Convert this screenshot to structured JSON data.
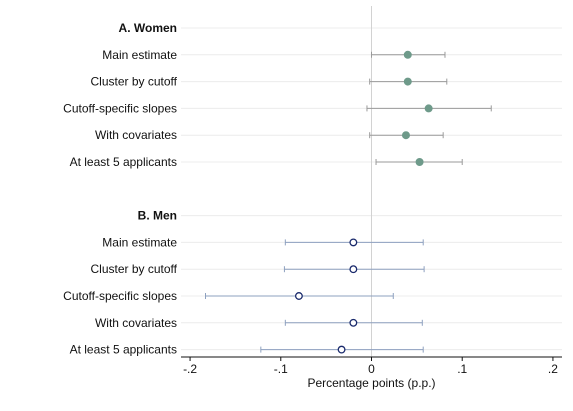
{
  "chart_data": {
    "type": "scatter",
    "subtype": "coefficient-plot-with-confidence-intervals",
    "xlabel": "Percentage points (p.p.)",
    "xlim": [
      -0.21,
      0.21
    ],
    "x_ticks": [
      -0.2,
      -0.1,
      0,
      0.1,
      0.2
    ],
    "x_tick_labels": [
      "-.2",
      "-.1",
      "0",
      ".1",
      ".2"
    ],
    "zero_reference_line": true,
    "grid": true,
    "groups": [
      {
        "label": "A. Women",
        "marker": "filled-circle",
        "color": "#6e9a8a",
        "ci_color": "#9a9a9a",
        "rows": [
          {
            "label": "Main estimate",
            "estimate": 0.04,
            "ci_low": 0.0,
            "ci_high": 0.081
          },
          {
            "label": "Cluster by cutoff",
            "estimate": 0.04,
            "ci_low": -0.002,
            "ci_high": 0.083
          },
          {
            "label": "Cutoff-specific slopes",
            "estimate": 0.063,
            "ci_low": -0.005,
            "ci_high": 0.132
          },
          {
            "label": "With covariates",
            "estimate": 0.038,
            "ci_low": -0.002,
            "ci_high": 0.079
          },
          {
            "label": "At least 5 applicants",
            "estimate": 0.053,
            "ci_low": 0.005,
            "ci_high": 0.1
          }
        ]
      },
      {
        "label": "B. Men",
        "marker": "hollow-circle",
        "color": "#1a2a6c",
        "ci_color": "#8da0bf",
        "rows": [
          {
            "label": "Main estimate",
            "estimate": -0.02,
            "ci_low": -0.095,
            "ci_high": 0.057
          },
          {
            "label": "Cluster by cutoff",
            "estimate": -0.02,
            "ci_low": -0.096,
            "ci_high": 0.058
          },
          {
            "label": "Cutoff-specific slopes",
            "estimate": -0.08,
            "ci_low": -0.183,
            "ci_high": 0.024
          },
          {
            "label": "With covariates",
            "estimate": -0.02,
            "ci_low": -0.095,
            "ci_high": 0.056
          },
          {
            "label": "At least 5 applicants",
            "estimate": -0.033,
            "ci_low": -0.122,
            "ci_high": 0.057
          }
        ]
      }
    ]
  }
}
